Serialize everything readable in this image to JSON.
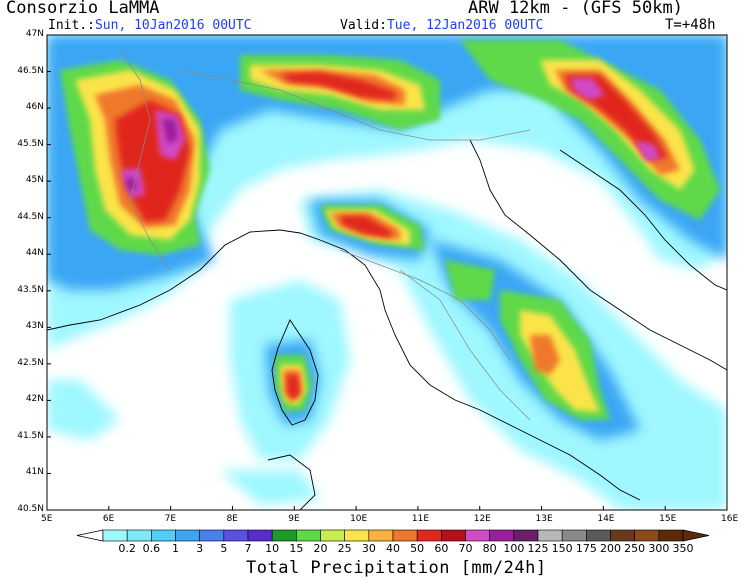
{
  "header": {
    "title": "Consorzio LaMMA",
    "model": "ARW 12km - (GFS 50km)",
    "init_label": "Init.:",
    "init_value": "Sun, 10Jan2016 00UTC",
    "valid_label": "Valid:",
    "valid_value": "Tue, 12Jan2016 00UTC",
    "step": "T=+48h"
  },
  "map": {
    "lon_labels": [
      "5E",
      "6E",
      "7E",
      "8E",
      "9E",
      "10E",
      "11E",
      "12E",
      "13E",
      "14E",
      "15E",
      "16E"
    ],
    "lat_labels": [
      "47N",
      "46.5N",
      "46N",
      "45.5N",
      "45N",
      "44.5N",
      "44N",
      "43.5N",
      "43N",
      "42.5N",
      "42N",
      "41.5N",
      "41N",
      "40.5N"
    ],
    "lon_range": [
      5,
      16
    ],
    "lat_range": [
      40.5,
      47
    ]
  },
  "colorbar": {
    "title": "Total Precipitation [mm/24h]",
    "labels": [
      "0.2",
      "0.6",
      "1",
      "3",
      "5",
      "7",
      "10",
      "15",
      "20",
      "25",
      "30",
      "40",
      "50",
      "60",
      "70",
      "80",
      "100",
      "125",
      "150",
      "175",
      "200",
      "250",
      "300",
      "350"
    ],
    "colors": [
      "#9ff7ff",
      "#7fe7f7",
      "#4fcff7",
      "#3aa6f4",
      "#4a7ff0",
      "#5a4fe6",
      "#5a2cd0",
      "#1f9a2a",
      "#5fd94a",
      "#c9f04a",
      "#fbe44a",
      "#f7b33a",
      "#f0782a",
      "#e0281f",
      "#b8101a",
      "#d24ac6",
      "#9a1f9a",
      "#6a1f6a",
      "#b8b8b8",
      "#8a8a8a",
      "#5a5a5a",
      "#6a3a1a",
      "#8a4a1a",
      "#5a2a0a"
    ]
  }
}
